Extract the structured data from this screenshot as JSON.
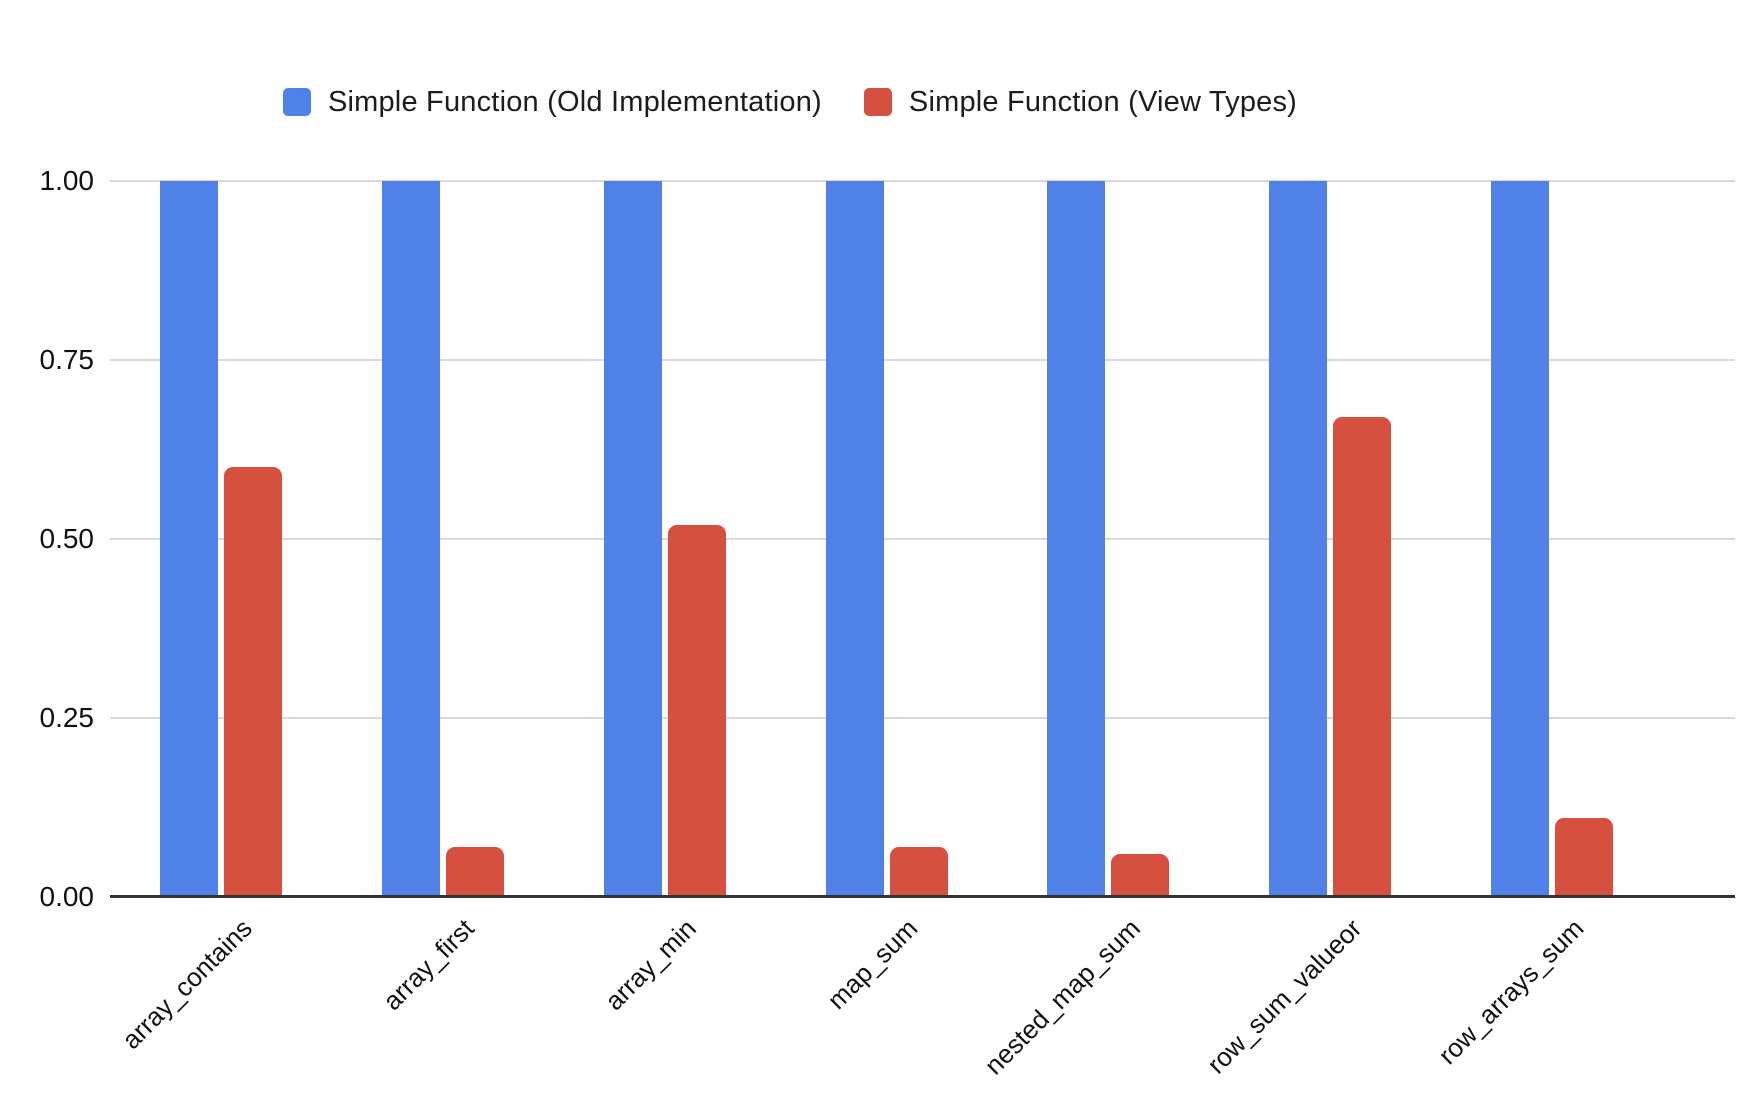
{
  "chart_data": {
    "type": "bar",
    "categories": [
      "array_contains",
      "array_first",
      "array_min",
      "map_sum",
      "nested_map_sum",
      "row_sum_valueor",
      "row_arrays_sum"
    ],
    "series": [
      {
        "name": "Simple Function (Old Implementation)",
        "color": "#4F81E8",
        "values": [
          1.0,
          1.0,
          1.0,
          1.0,
          1.0,
          1.0,
          1.0
        ]
      },
      {
        "name": "Simple Function (View Types)",
        "color": "#D5503F",
        "values": [
          0.6,
          0.07,
          0.52,
          0.07,
          0.06,
          0.67,
          0.11
        ]
      }
    ],
    "title": "",
    "xlabel": "",
    "ylabel": "",
    "ylim": [
      0,
      1.0
    ],
    "yticks": [
      0,
      0.25,
      0.5,
      0.75,
      1.0
    ],
    "ytick_labels": [
      "0.00",
      "0.25",
      "0.50",
      "0.75",
      "1.00"
    ],
    "grid": true,
    "legend_position": "top"
  },
  "legend": {
    "items": [
      {
        "label": "Simple Function (Old Implementation)",
        "color": "#4F81E8"
      },
      {
        "label": "Simple Function (View Types)",
        "color": "#D5503F"
      }
    ]
  },
  "colors": {
    "background": "#ffffff",
    "grid": "#d9d9d9",
    "axis": "#333333",
    "text": "#111111"
  }
}
